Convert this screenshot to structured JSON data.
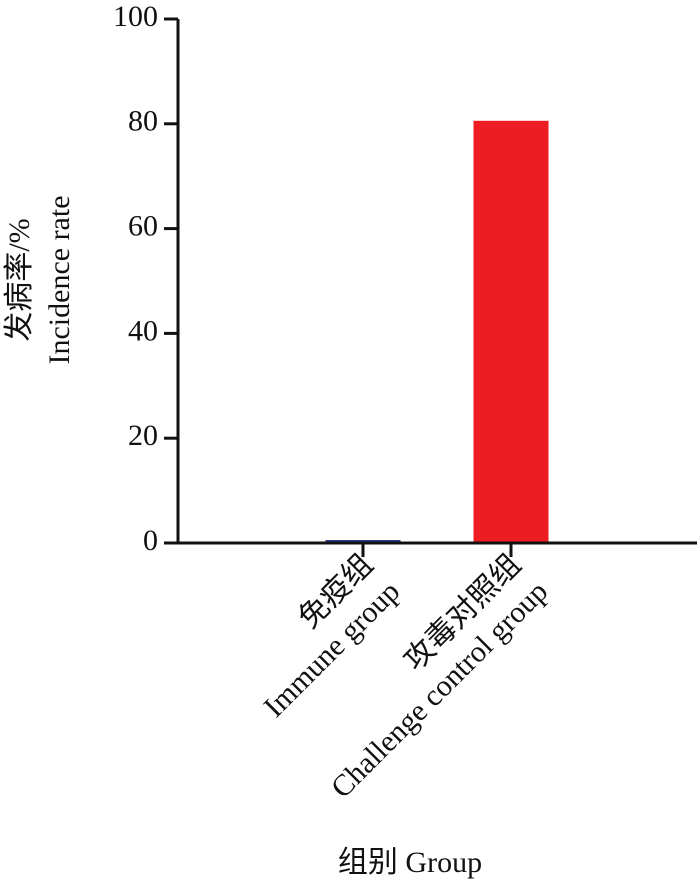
{
  "chart_data": {
    "type": "bar",
    "categories": [
      [
        "免疫组",
        "Immune group"
      ],
      [
        "攻毒对照组",
        "Challenge control group"
      ]
    ],
    "values": [
      0,
      80
    ],
    "colors": [
      "#2b3a8c",
      "#ee1d23"
    ],
    "ylabel": [
      "发病率/%",
      "Incidence rate"
    ],
    "xlabel": "组别 Group",
    "ylim": [
      0,
      100
    ],
    "yticks": [
      0,
      20,
      40,
      60,
      80,
      100
    ]
  }
}
